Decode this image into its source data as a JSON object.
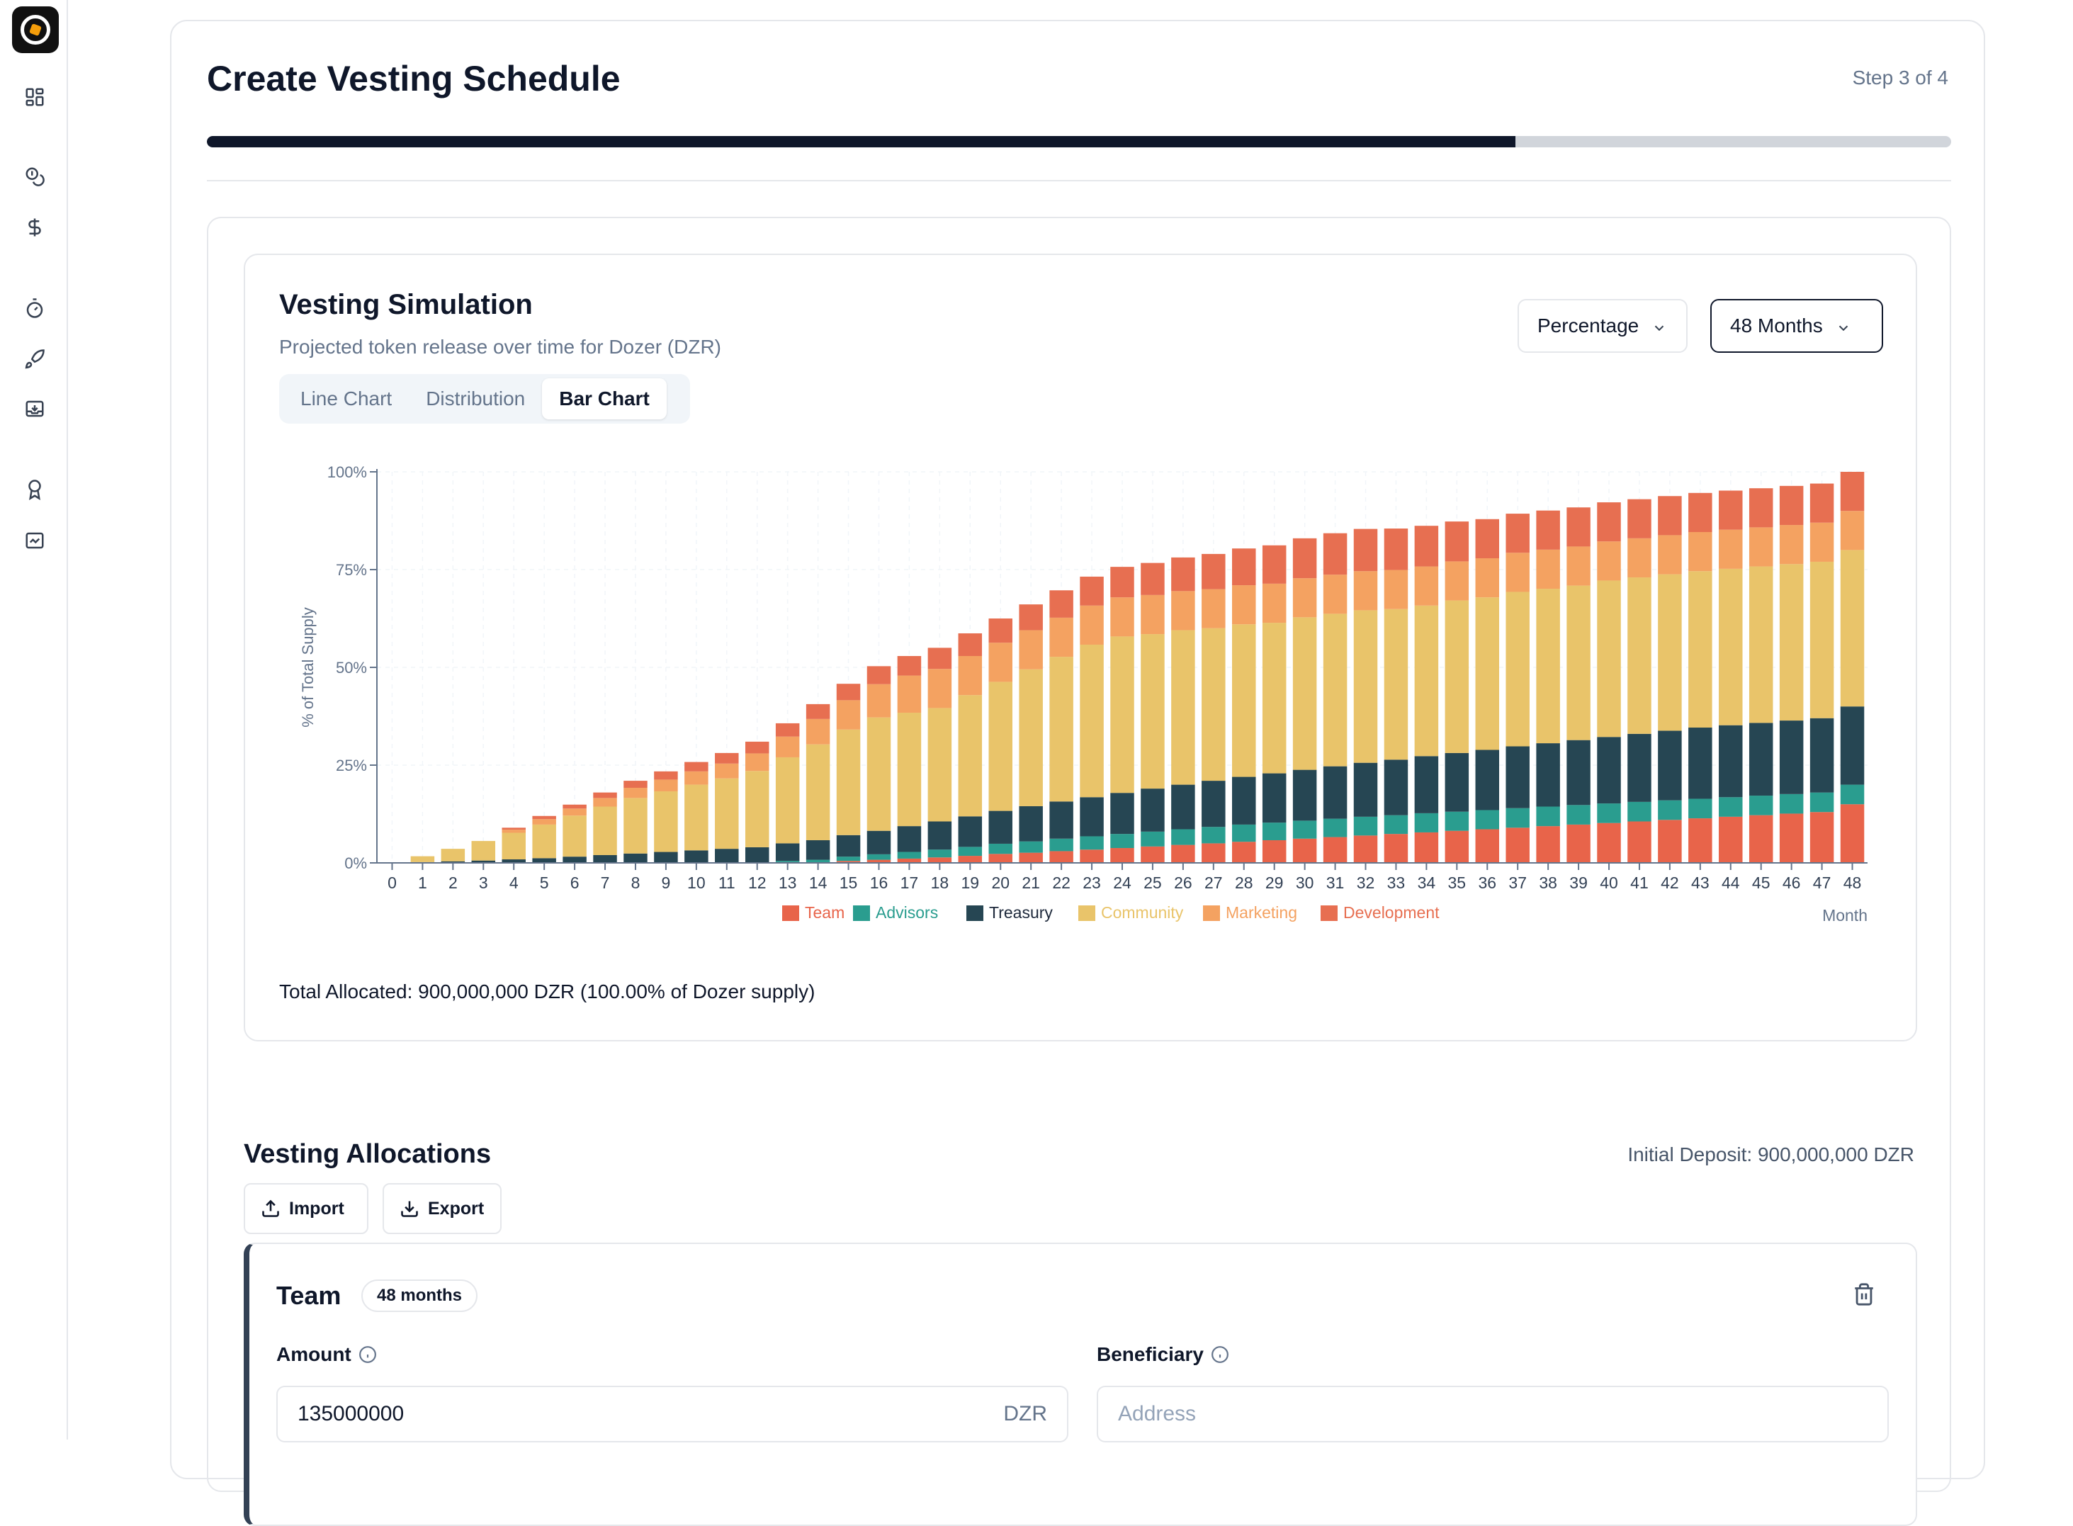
{
  "sidebar": {
    "icons": [
      "logo",
      "dashboard-icon",
      "coins-icon",
      "dollar-icon",
      "timer-icon",
      "rocket-icon",
      "inbox-download-icon",
      "award-icon",
      "chart-box-icon"
    ]
  },
  "header": {
    "title": "Create Vesting Schedule",
    "step": "Step 3 of 4",
    "progress_fraction": 0.75
  },
  "simulation": {
    "title": "Vesting Simulation",
    "subtitle": "Projected token release over time for Dozer (DZR)",
    "metric_select": "Percentage",
    "range_select": "48 Months",
    "tabs": [
      "Line Chart",
      "Distribution",
      "Bar Chart"
    ],
    "active_tab": "Bar Chart",
    "total_allocated": "Total Allocated: 900,000,000 DZR (100.00% of Dozer supply)"
  },
  "chart_data": {
    "type": "bar",
    "stacked": true,
    "title": "",
    "xlabel": "Month",
    "ylabel": "% of Total Supply",
    "ylim": [
      0,
      100
    ],
    "yticks": [
      "0%",
      "25%",
      "50%",
      "75%",
      "100%"
    ],
    "categories": [
      "0",
      "1",
      "2",
      "3",
      "4",
      "5",
      "6",
      "7",
      "8",
      "9",
      "10",
      "11",
      "12",
      "13",
      "14",
      "15",
      "16",
      "17",
      "18",
      "19",
      "20",
      "21",
      "22",
      "23",
      "24",
      "25",
      "26",
      "27",
      "28",
      "29",
      "30",
      "31",
      "32",
      "33",
      "34",
      "35",
      "36",
      "37",
      "38",
      "39",
      "40",
      "41",
      "42",
      "43",
      "44",
      "45",
      "46",
      "47",
      "48"
    ],
    "series": [
      {
        "name": "Team",
        "color": "#e8644a",
        "values": [
          0,
          0,
          0,
          0,
          0,
          0,
          0,
          0,
          0,
          0,
          0,
          0,
          0,
          0,
          0,
          0.5,
          0.8,
          1.1,
          1.4,
          1.8,
          2.3,
          2.6,
          3.0,
          3.4,
          3.8,
          4.2,
          4.6,
          5.0,
          5.4,
          5.8,
          6.2,
          6.6,
          7.0,
          7.4,
          7.8,
          8.2,
          8.6,
          9.0,
          9.4,
          9.8,
          10.2,
          10.6,
          11.0,
          11.4,
          11.8,
          12.2,
          12.6,
          13.0,
          15.0
        ]
      },
      {
        "name": "Advisors",
        "color": "#2a9d8f",
        "values": [
          0,
          0,
          0,
          0,
          0,
          0,
          0,
          0,
          0,
          0,
          0,
          0,
          0,
          0.5,
          0.8,
          1.1,
          1.4,
          1.7,
          2.0,
          2.3,
          2.6,
          2.9,
          3.2,
          3.4,
          3.6,
          3.8,
          4.0,
          4.2,
          4.4,
          4.5,
          4.6,
          4.7,
          4.8,
          4.8,
          4.9,
          4.9,
          4.9,
          5.0,
          5.0,
          5.0,
          5.0,
          5.0,
          5.0,
          5.0,
          5.0,
          5.0,
          5.0,
          5.0,
          5.0
        ]
      },
      {
        "name": "Treasury",
        "color": "#264653",
        "values": [
          0,
          0.2,
          0.4,
          0.6,
          0.9,
          1.2,
          1.6,
          2.0,
          2.4,
          2.8,
          3.2,
          3.6,
          4.0,
          4.5,
          5.0,
          5.5,
          6.0,
          6.6,
          7.2,
          7.8,
          8.4,
          9.0,
          9.5,
          10.0,
          10.5,
          11.0,
          11.4,
          11.8,
          12.2,
          12.6,
          13.0,
          13.4,
          13.8,
          14.2,
          14.6,
          15.0,
          15.4,
          15.8,
          16.2,
          16.6,
          17.0,
          17.4,
          17.8,
          18.2,
          18.4,
          18.6,
          18.8,
          19.0,
          20.0
        ]
      },
      {
        "name": "Community",
        "color": "#e9c46a",
        "values": [
          0,
          1.5,
          3.2,
          5.0,
          6.8,
          8.6,
          10.5,
          12.4,
          14.2,
          15.5,
          16.8,
          18.0,
          19.5,
          22.0,
          24.5,
          27.0,
          29.0,
          29.0,
          29.0,
          31.0,
          33.0,
          35.0,
          37.0,
          39.0,
          40.0,
          39.5,
          39.5,
          39.0,
          39.0,
          38.5,
          39.0,
          39.0,
          39.0,
          38.5,
          38.5,
          39.0,
          39.0,
          39.5,
          39.5,
          39.5,
          40.0,
          40.0,
          40.0,
          40.0,
          40.0,
          40.0,
          40.0,
          40.0,
          40.0
        ]
      },
      {
        "name": "Marketing",
        "color": "#f4a261",
        "values": [
          0,
          0,
          0,
          0,
          0.8,
          1.4,
          1.8,
          2.2,
          2.6,
          3.0,
          3.4,
          3.8,
          4.5,
          5.3,
          6.5,
          7.5,
          8.5,
          9.5,
          10.0,
          10.0,
          10.0,
          10.0,
          10.0,
          10.0,
          10.0,
          10.0,
          10.0,
          10.0,
          10.0,
          10.0,
          10.0,
          10.0,
          10.0,
          10.0,
          10.0,
          10.0,
          10.0,
          10.0,
          10.0,
          10.0,
          10.0,
          10.0,
          10.0,
          10.0,
          10.0,
          10.0,
          10.0,
          10.0,
          10.0
        ]
      },
      {
        "name": "Development",
        "color": "#e76f51",
        "values": [
          0,
          0,
          0,
          0,
          0.5,
          0.8,
          1.0,
          1.4,
          1.8,
          2.1,
          2.4,
          2.7,
          3.0,
          3.4,
          3.8,
          4.2,
          4.6,
          5.0,
          5.4,
          5.8,
          6.2,
          6.6,
          7.0,
          7.4,
          7.8,
          8.2,
          8.6,
          9.0,
          9.4,
          9.8,
          10.2,
          10.6,
          10.8,
          10.6,
          10.4,
          10.2,
          10.0,
          10.0,
          10.0,
          10.0,
          10.0,
          10.0,
          10.0,
          10.0,
          10.0,
          10.0,
          10.0,
          10.0,
          10.0
        ]
      }
    ],
    "legend_position": "bottom-center"
  },
  "allocations": {
    "title": "Vesting Allocations",
    "initial_deposit": "Initial Deposit: 900,000,000 DZR",
    "import_label": "Import",
    "export_label": "Export",
    "team": {
      "name": "Team",
      "duration_badge": "48 months",
      "amount_label": "Amount",
      "amount_value": "135000000",
      "amount_unit": "DZR",
      "beneficiary_label": "Beneficiary",
      "beneficiary_placeholder": "Address"
    }
  }
}
